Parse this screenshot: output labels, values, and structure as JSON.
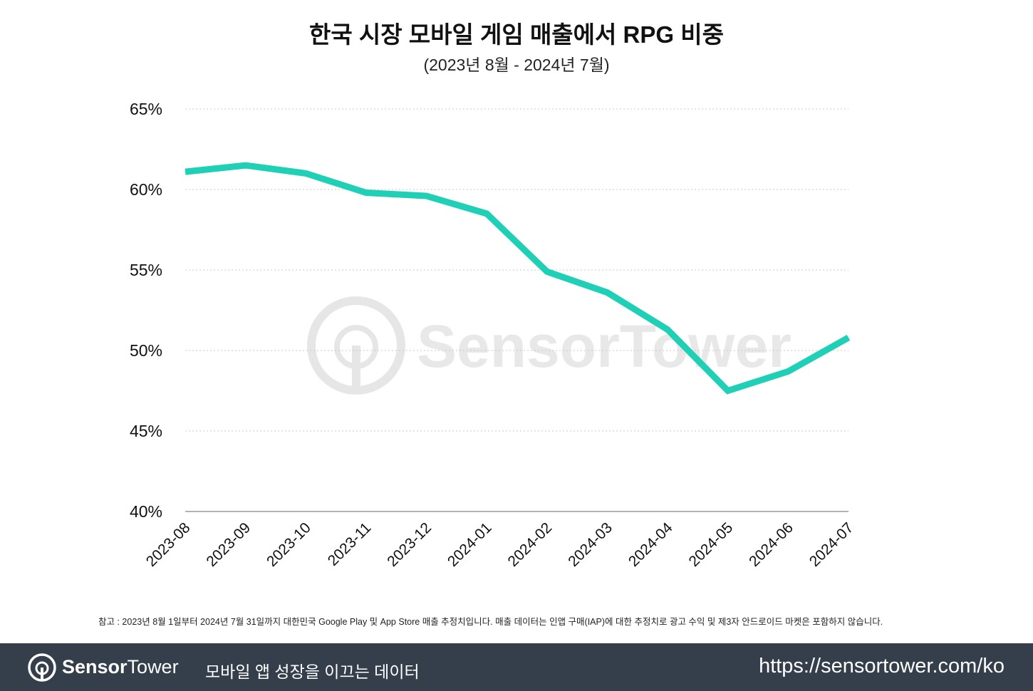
{
  "header": {
    "title": "한국 시장 모바일 게임 매출에서 RPG 비중",
    "subtitle": "(2023년 8월 - 2024년 7월)"
  },
  "watermark": {
    "text": "SensorTower",
    "icon": "sensor-tower-logo-icon"
  },
  "chart_data": {
    "type": "line",
    "title": "한국 시장 모바일 게임 매출에서 RPG 비중",
    "subtitle": "(2023년 8월 - 2024년 7월)",
    "x": [
      "2023-08",
      "2023-09",
      "2023-10",
      "2023-11",
      "2023-12",
      "2024-01",
      "2024-02",
      "2024-03",
      "2024-04",
      "2024-05",
      "2024-06",
      "2024-07"
    ],
    "series": [
      {
        "values": [
          61.1,
          61.5,
          61.0,
          59.8,
          59.6,
          58.5,
          54.9,
          53.6,
          51.3,
          47.5,
          48.7,
          50.8
        ]
      }
    ],
    "ylim": [
      40,
      65
    ],
    "yticks": [
      "40%",
      "45%",
      "50%",
      "55%",
      "60%",
      "65%"
    ],
    "ytick_values": [
      40,
      45,
      50,
      55,
      60,
      65
    ],
    "xlabel": "",
    "ylabel": "",
    "grid": true,
    "legend": "none",
    "line_color": "#1fd0b6",
    "grid_color": "#c8c8c8"
  },
  "note": "참고 : 2023년 8월 1일부터 2024년 7월 31일까지 대한민국 Google Play 및 App Store 매출 추정치입니다. 매출 데이터는 인앱 구매(IAP)에 대한 추정치로 광고 수익 및 제3자 안드로이드 마켓은 포함하지 않습니다.",
  "footer": {
    "brand_bold": "Sensor",
    "brand_light": "Tower",
    "brand_icon": "sensor-tower-logo-icon",
    "tagline": "모바일 앱 성장을 이끄는 데이터",
    "url": "https://sensortower.com/ko",
    "background": "#343f4b"
  }
}
